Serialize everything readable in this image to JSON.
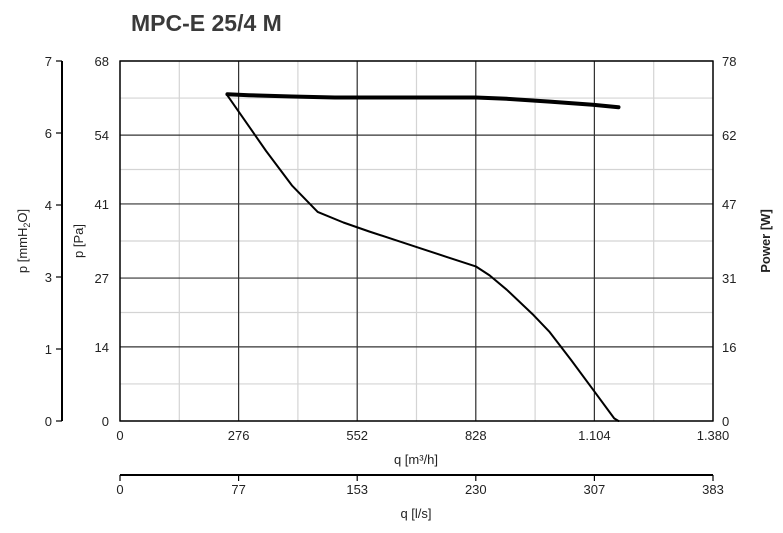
{
  "chart_data": {
    "type": "line",
    "title": "MPC-E 25/4 M",
    "x_axis": {
      "label": "q [m³/h]",
      "range": [
        0,
        1380
      ],
      "ticks": [
        0,
        276,
        552,
        828,
        1104,
        1380
      ],
      "tick_labels": [
        "0",
        "276",
        "552",
        "828",
        "1.104",
        "1.380"
      ],
      "minor_grid_step": 138
    },
    "x_axis_secondary": {
      "label": "q [l/s]",
      "ticks": [
        0,
        77,
        153,
        230,
        307,
        383
      ],
      "tick_labels": [
        "0",
        "77",
        "153",
        "230",
        "307",
        "383"
      ]
    },
    "y_axis_left_outer": {
      "label_main": "p [mmH",
      "label_sub": "2",
      "label_end": "O]",
      "ticks": [
        0,
        1,
        3,
        4,
        6,
        7
      ],
      "tick_labels": [
        "0",
        "1",
        "3",
        "4",
        "6",
        "7"
      ]
    },
    "y_axis_left": {
      "label": "p [Pa]",
      "range": [
        0,
        68
      ],
      "ticks": [
        0,
        14,
        27,
        41,
        54,
        68
      ],
      "tick_labels": [
        "0",
        "14",
        "27",
        "41",
        "54",
        "68"
      ]
    },
    "y_axis_right": {
      "label": "Power [W]",
      "range": [
        0,
        78
      ],
      "ticks": [
        0,
        16,
        31,
        47,
        62,
        78
      ],
      "tick_labels": [
        "0",
        "16",
        "31",
        "47",
        "62",
        "78"
      ]
    },
    "grid": true,
    "series": [
      {
        "axis": "left",
        "color": "#000000",
        "points": [
          [
            250,
            61.5
          ],
          [
            280,
            58
          ],
          [
            340,
            51
          ],
          [
            400,
            44.5
          ],
          [
            460,
            39.5
          ],
          [
            520,
            37.5
          ],
          [
            580,
            35.8
          ],
          [
            640,
            34.2
          ],
          [
            700,
            32.6
          ],
          [
            760,
            31.0
          ],
          [
            828,
            29.2
          ],
          [
            860,
            27.5
          ],
          [
            900,
            24.8
          ],
          [
            960,
            20.2
          ],
          [
            1000,
            16.8
          ],
          [
            1050,
            11.5
          ],
          [
            1100,
            6
          ],
          [
            1150,
            0.5
          ],
          [
            1160,
            0
          ]
        ]
      },
      {
        "axis": "right",
        "color": "#000000",
        "points": [
          [
            250,
            70.8
          ],
          [
            300,
            70.6
          ],
          [
            400,
            70.3
          ],
          [
            500,
            70.1
          ],
          [
            600,
            70.1
          ],
          [
            700,
            70.1
          ],
          [
            828,
            70.1
          ],
          [
            900,
            69.8
          ],
          [
            1000,
            69.2
          ],
          [
            1100,
            68.5
          ],
          [
            1160,
            68.0
          ]
        ]
      }
    ]
  }
}
